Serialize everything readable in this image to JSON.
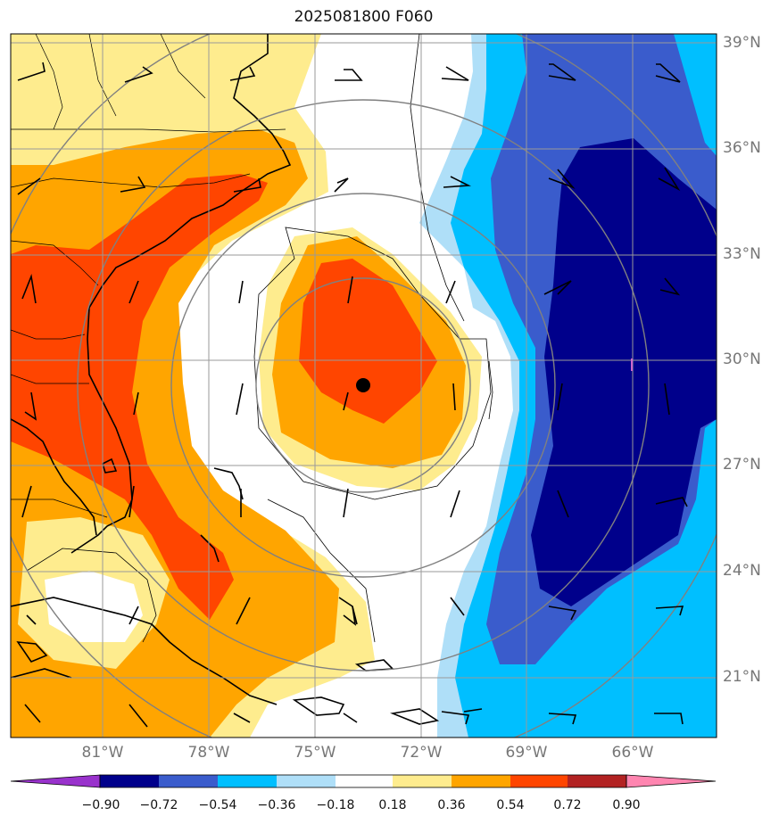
{
  "title": "2025081800 F060",
  "lat_labels": [
    "39°N",
    "36°N",
    "33°N",
    "30°N",
    "27°N",
    "24°N",
    "21°N"
  ],
  "lon_labels": [
    "81°W",
    "78°W",
    "75°W",
    "72°W",
    "69°W",
    "66°W"
  ],
  "colorbar": {
    "labels": [
      "−0.90",
      "−0.72",
      "−0.54",
      "−0.36",
      "−0.18",
      "0.18",
      "0.36",
      "0.54",
      "0.72",
      "0.90"
    ],
    "colors": [
      "#9932cc",
      "#00008b",
      "#3a5ccc",
      "#00bfff",
      "#afdff8",
      "#ffffff",
      "#feec8e",
      "#ffa500",
      "#ff4500",
      "#b22222",
      "#ff85b0"
    ]
  },
  "palette": {
    "neg_090": "#00008b",
    "neg_072": "#3a5ccc",
    "neg_054": "#00bfff",
    "neg_036": "#afdff8",
    "pos_018": "#feec8e",
    "pos_036": "#ffa500",
    "pos_054": "#ff4500"
  },
  "center_marker": "storm-center-dot"
}
